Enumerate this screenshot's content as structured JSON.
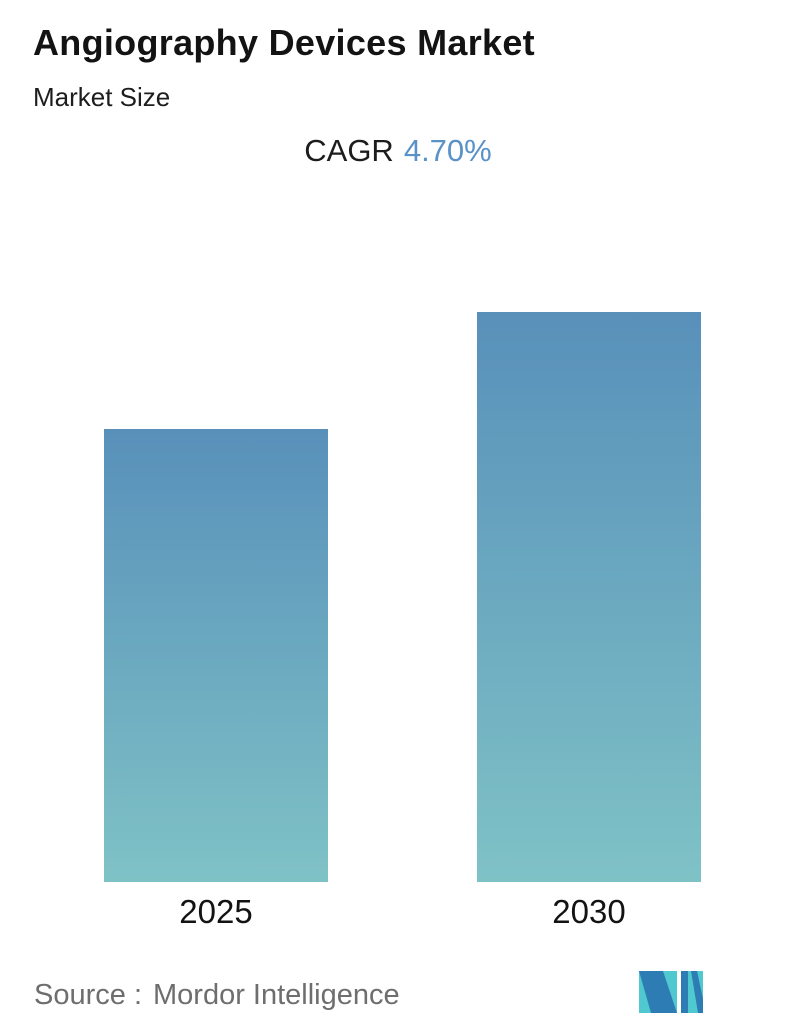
{
  "chart_data": {
    "type": "bar",
    "title": "Angiography Devices Market",
    "subtitle": "Market Size",
    "cagr_label": "CAGR",
    "cagr_value": "4.70%",
    "categories": [
      "2025",
      "2030"
    ],
    "values": [
      100,
      125.8
    ],
    "values_unit": "relative index (2025 = 100); no value axis shown in chart",
    "cagr_percent": 4.7,
    "axes_hidden": true,
    "grid": false,
    "legend": false,
    "bar_gradient_top": "#5890BA",
    "bar_gradient_bottom": "#7FC2C6",
    "cagr_value_color": "#5992C7"
  },
  "footer": {
    "source_label": "Source :",
    "source_value": "Mordor Intelligence",
    "logo_teal": "#4FC9CF",
    "logo_blue": "#2E7CB4"
  }
}
